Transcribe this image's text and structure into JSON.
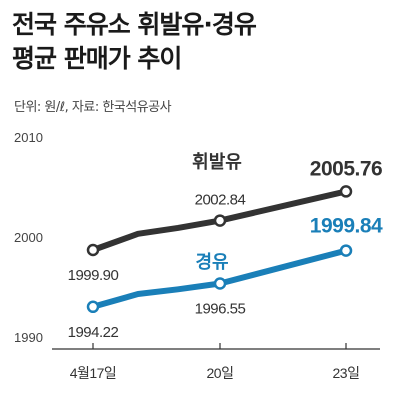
{
  "header": {
    "title_line1": "전국 주유소 휘발유·경유",
    "title_line2": "평균 판매가 추이",
    "source": "단위: 원/ℓ, 자료: 한국석유공사"
  },
  "chart_data": {
    "type": "line",
    "categories": [
      "4월17일",
      "20일",
      "23일"
    ],
    "y_ticks": [
      "2010",
      "2000",
      "1990"
    ],
    "ylim": [
      1990,
      2010
    ],
    "grid": false,
    "series": [
      {
        "name": "휘발유",
        "color": "#333333",
        "values": [
          1999.9,
          2002.84,
          2005.76
        ],
        "labels": [
          "1999.90",
          "2002.84",
          "2005.76"
        ]
      },
      {
        "name": "경유",
        "color": "#1a7fb8",
        "values": [
          1994.22,
          1996.55,
          1999.84
        ],
        "labels": [
          "1994.22",
          "1996.55",
          "1999.84"
        ]
      }
    ]
  }
}
